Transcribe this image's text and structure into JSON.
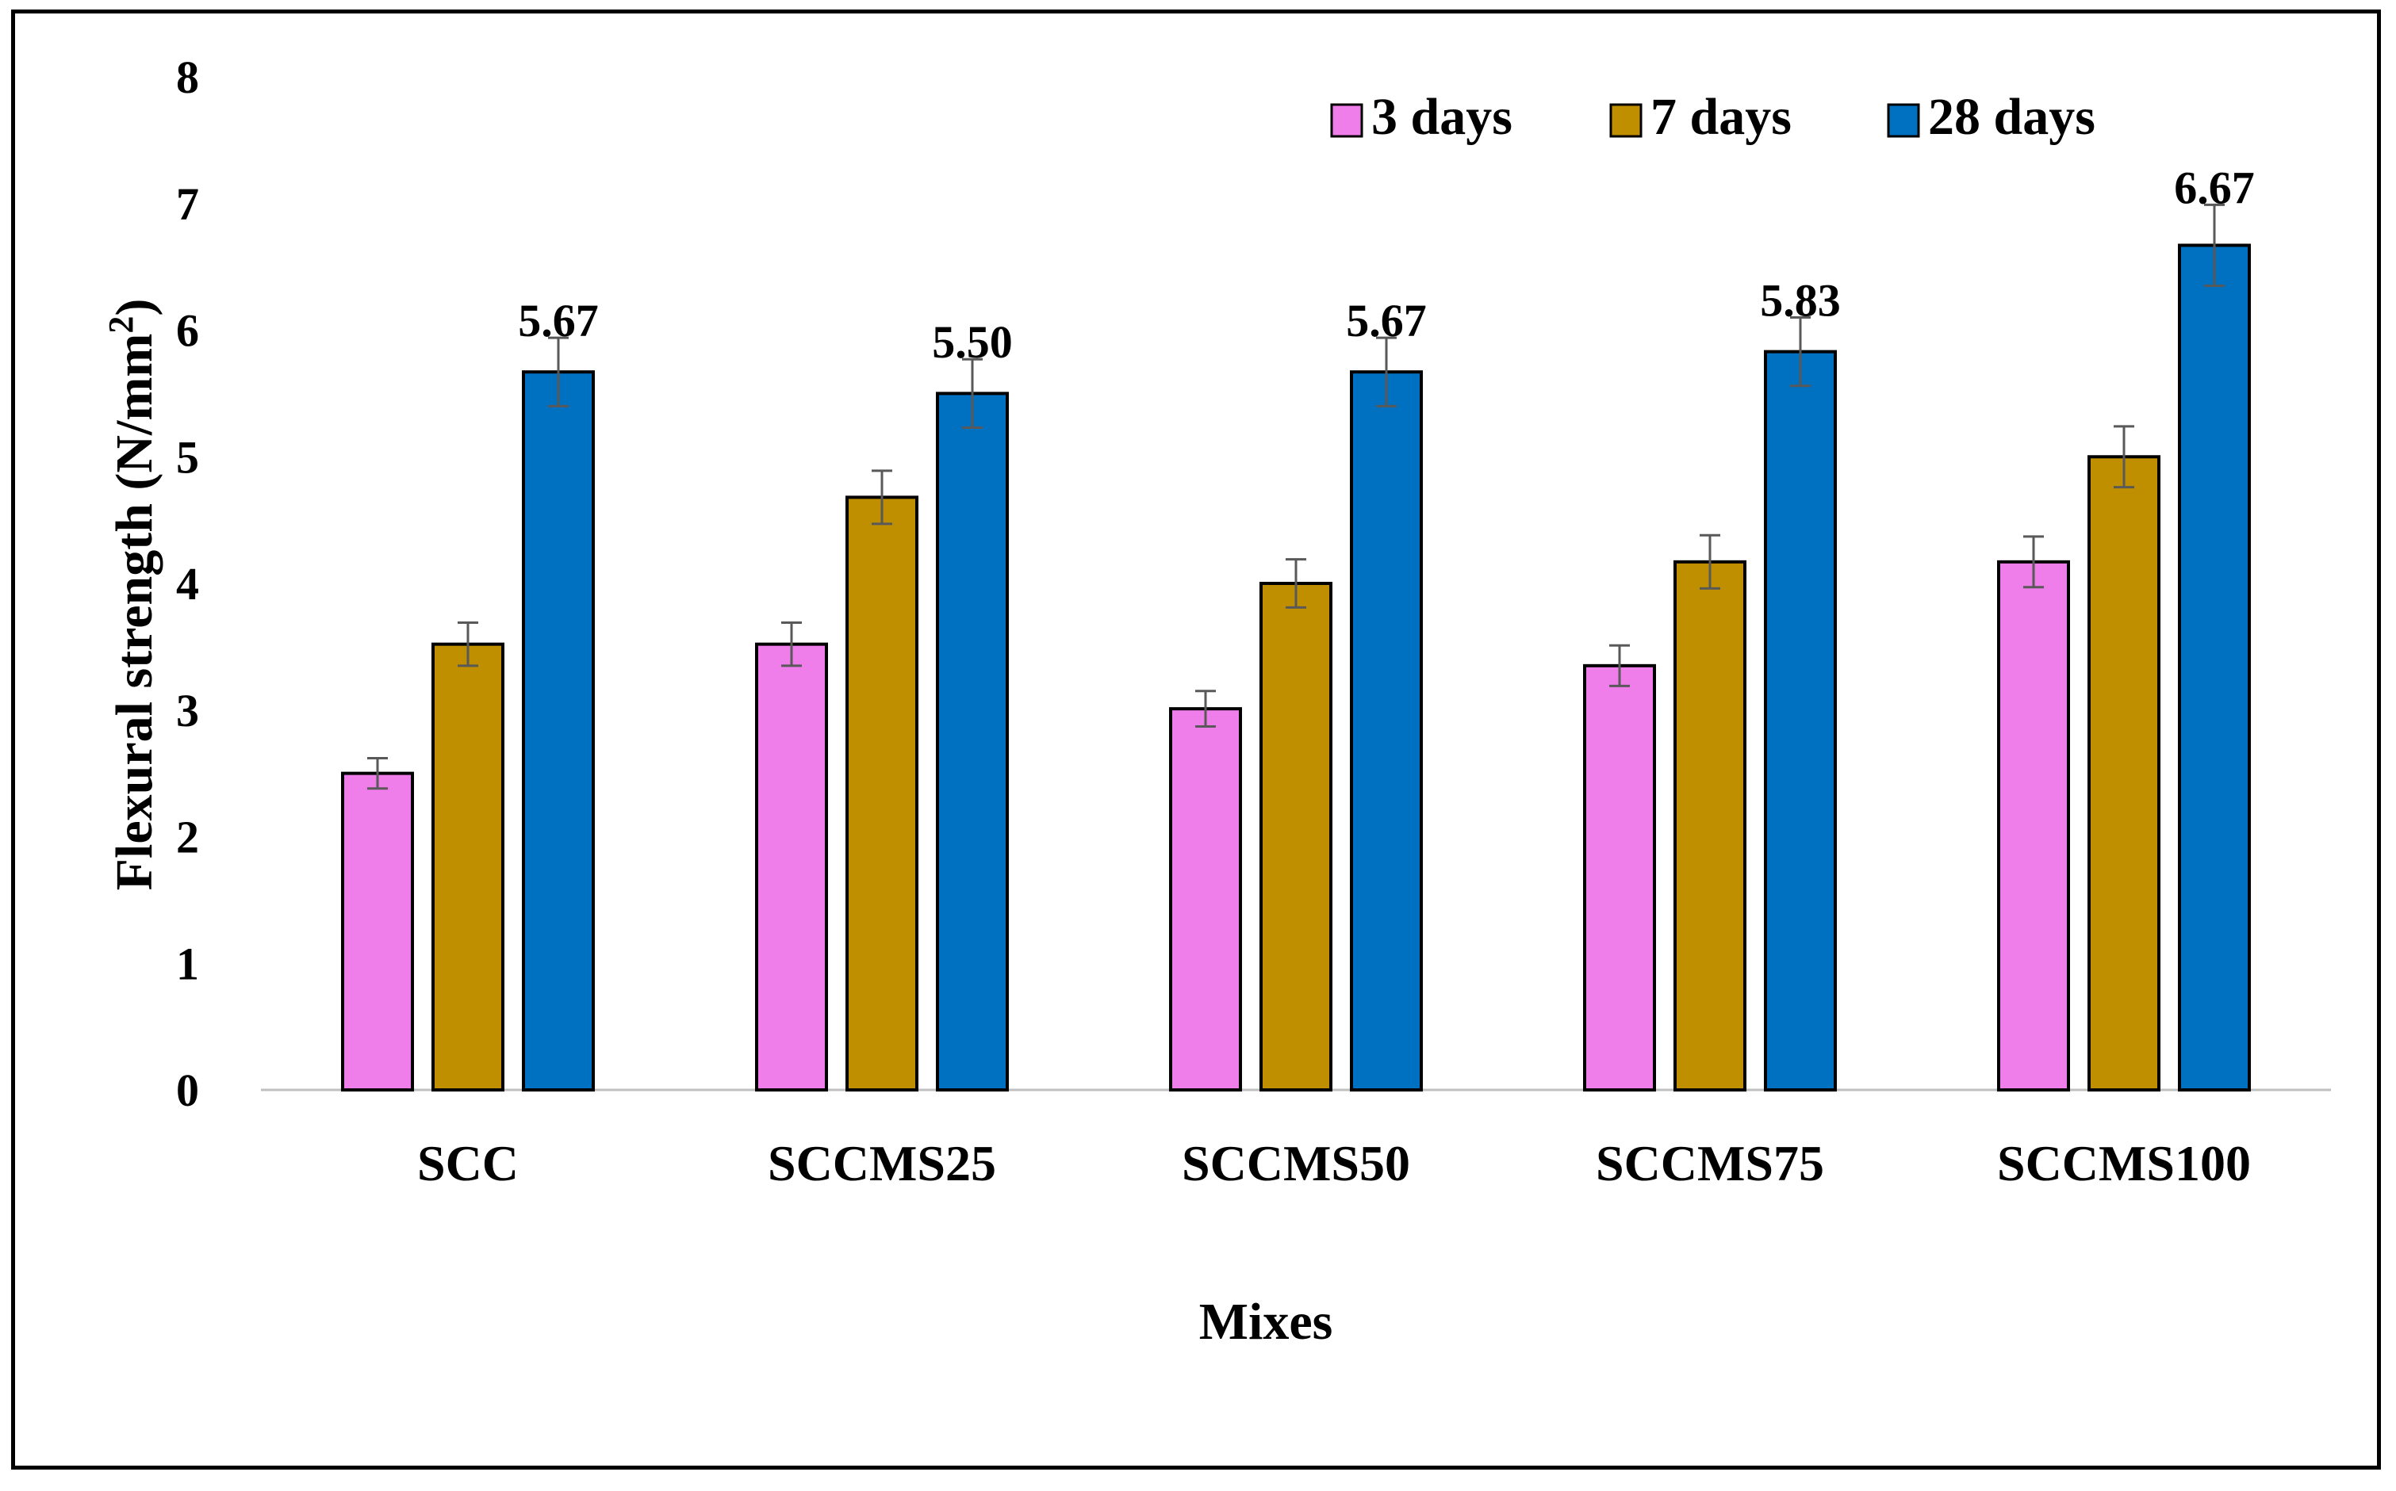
{
  "chart_data": {
    "type": "bar",
    "title": "",
    "xlabel": "Mixes",
    "ylabel": "Flexural strength (N/mm²)",
    "ylabel_parts": {
      "main": "Flexural strength (N/mm",
      "sup": "2",
      "close": ")"
    },
    "ylim": [
      0,
      8
    ],
    "yticks": [
      0,
      1,
      2,
      3,
      4,
      5,
      6,
      7,
      8
    ],
    "grid": false,
    "legend_position": "top-right",
    "categories": [
      "SCC",
      "SCCMS25",
      "SCCMS50",
      "SCCMS75",
      "SCCMS100"
    ],
    "series": [
      {
        "name": "3 days",
        "color": "#F07EEA",
        "values": [
          2.5,
          3.52,
          3.01,
          3.35,
          4.17
        ],
        "errors": [
          0.12,
          0.17,
          0.14,
          0.16,
          0.2
        ]
      },
      {
        "name": "7 days",
        "color": "#BF8F00",
        "values": [
          3.52,
          4.68,
          4.0,
          4.17,
          5.0
        ],
        "errors": [
          0.17,
          0.21,
          0.19,
          0.21,
          0.24
        ]
      },
      {
        "name": "28 days",
        "color": "#0070C0",
        "values": [
          5.67,
          5.5,
          5.67,
          5.83,
          6.67
        ],
        "errors": [
          0.27,
          0.27,
          0.27,
          0.27,
          0.32
        ]
      }
    ],
    "data_labels": {
      "series": "28 days",
      "labels": [
        "5.67",
        "5.50",
        "5.67",
        "5.83",
        "6.67"
      ]
    }
  }
}
